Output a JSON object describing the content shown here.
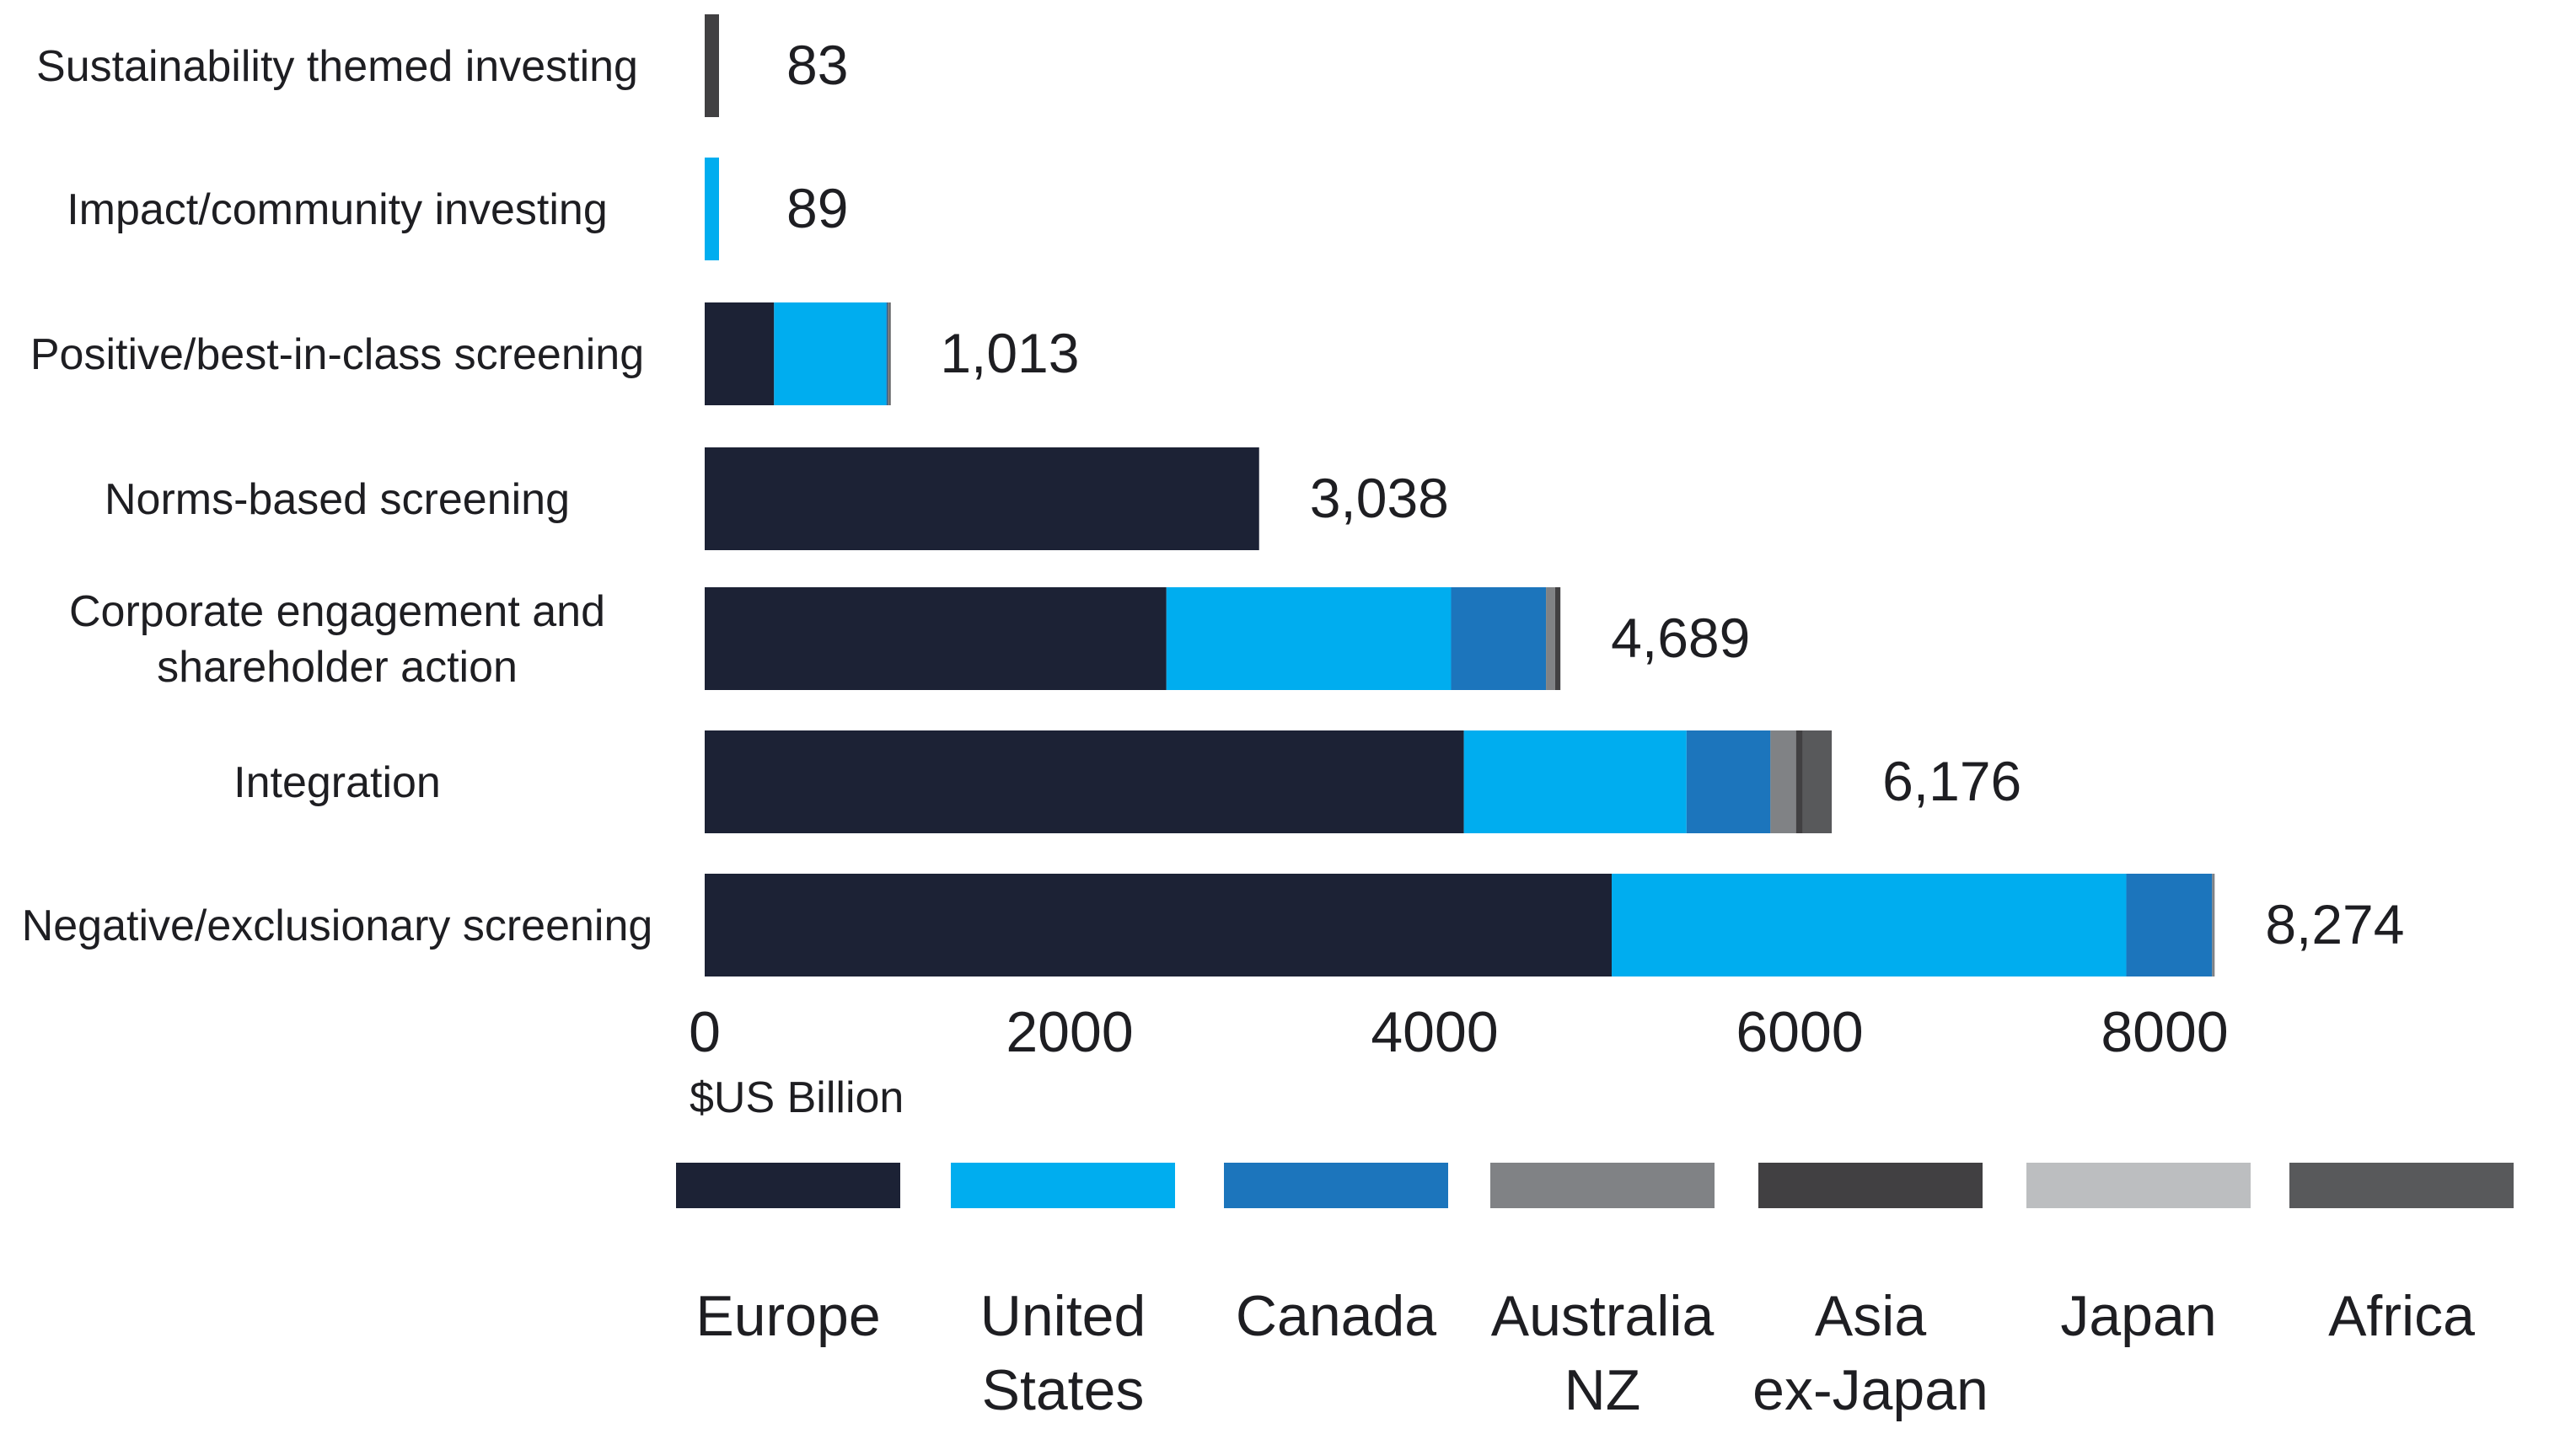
{
  "chart_data": {
    "type": "bar",
    "orientation": "horizontal",
    "stacked": true,
    "title": "",
    "xlabel": "$US Billion",
    "ylabel": "",
    "xlim": [
      0,
      9000
    ],
    "x_ticks": [
      0,
      2000,
      4000,
      6000,
      8000
    ],
    "grid": false,
    "legend_position": "bottom",
    "categories": [
      {
        "label_lines": [
          "Sustainability themed investing"
        ],
        "total_label": "83",
        "total": 83
      },
      {
        "label_lines": [
          "Impact/community investing"
        ],
        "total_label": "89",
        "total": 89
      },
      {
        "label_lines": [
          "Positive/best-in-class screening"
        ],
        "total_label": "1,013",
        "total": 1013
      },
      {
        "label_lines": [
          "Norms-based screening"
        ],
        "total_label": "3,038",
        "total": 3038
      },
      {
        "label_lines": [
          "Corporate engagement and",
          "shareholder action"
        ],
        "total_label": "4,689",
        "total": 4689
      },
      {
        "label_lines": [
          "Integration"
        ],
        "total_label": "6,176",
        "total": 6176
      },
      {
        "label_lines": [
          "Negative/exclusionary screening"
        ],
        "total_label": "8,274",
        "total": 8274
      }
    ],
    "series": [
      {
        "name": "Europe",
        "legend_lines": [
          "Europe"
        ],
        "color": "#1c2235",
        "values": [
          60,
          0,
          380,
          3038,
          2530,
          4160,
          4970
        ]
      },
      {
        "name": "United States",
        "legend_lines": [
          "United",
          "States"
        ],
        "color": "#00adef",
        "values": [
          0,
          89,
          615,
          0,
          1560,
          1220,
          2820
        ]
      },
      {
        "name": "Canada",
        "legend_lines": [
          "Canada"
        ],
        "color": "#1c75bc",
        "values": [
          0,
          0,
          6,
          0,
          520,
          460,
          470
        ]
      },
      {
        "name": "Australia NZ",
        "legend_lines": [
          "Australia",
          "NZ"
        ],
        "color": "#808285",
        "values": [
          0,
          0,
          3,
          0,
          50,
          140,
          14
        ]
      },
      {
        "name": "Asia ex-Japan",
        "legend_lines": [
          "Asia",
          "ex-Japan"
        ],
        "color": "#414042",
        "values": [
          23,
          0,
          3,
          0,
          29,
          36,
          0
        ]
      },
      {
        "name": "Japan",
        "legend_lines": [
          "Japan"
        ],
        "color": "#bcbec0",
        "values": [
          0,
          0,
          3,
          0,
          0,
          0,
          0
        ]
      },
      {
        "name": "Africa",
        "legend_lines": [
          "Africa"
        ],
        "color": "#58595b",
        "values": [
          0,
          0,
          3,
          0,
          0,
          160,
          0
        ]
      }
    ]
  }
}
